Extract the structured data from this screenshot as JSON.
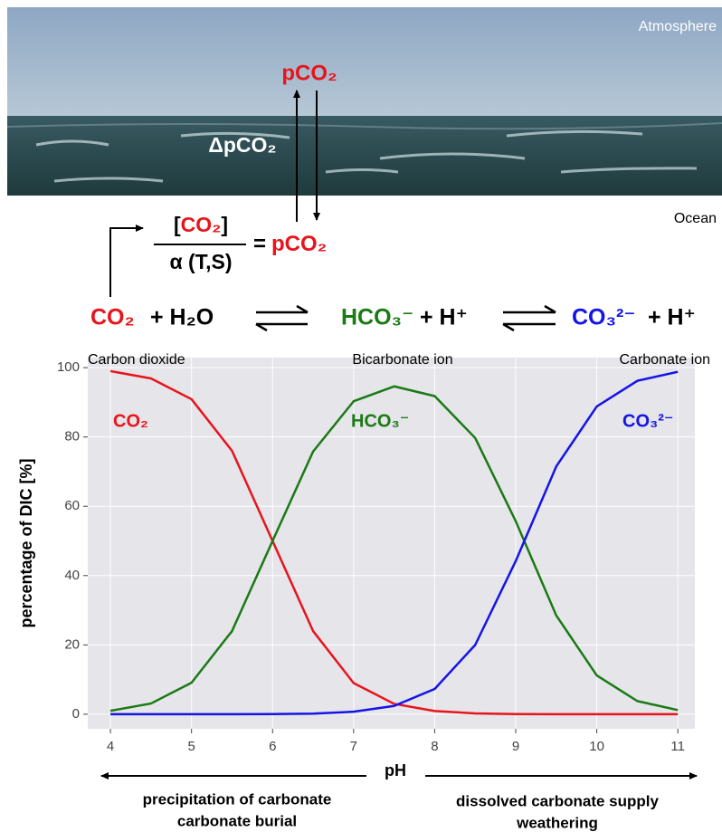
{
  "diagram": {
    "atmosphere": "Atmosphere",
    "ocean": "Ocean",
    "pco2_top": "pCO₂",
    "delta": "ΔpCO₂",
    "numerator": [
      "[",
      "CO₂",
      "]"
    ],
    "denominator": "α (T,S)",
    "equals": [
      "=",
      "pCO₂"
    ],
    "reaction": [
      "CO₂",
      "+ H₂O",
      "HCO₃⁻",
      "+ H⁺",
      "CO₃²⁻",
      "+ H⁺"
    ],
    "species_names": [
      "Carbon dioxide",
      "Bicarbonate ion",
      "Carbonate ion"
    ],
    "left_note": [
      "precipitation of carbonate",
      "carbonate burial"
    ],
    "right_note": [
      "dissolved carbonate supply",
      "weathering"
    ]
  },
  "chart_data": {
    "type": "line",
    "x_label": "pH",
    "y_label": "percentage of DIC [%]",
    "x": [
      4,
      4.5,
      5,
      5.5,
      6,
      6.5,
      7,
      7.5,
      8,
      8.5,
      9,
      9.5,
      10,
      10.5,
      11
    ],
    "series": [
      {
        "name": "CO₂",
        "color": "#e8141b",
        "values": [
          99.0,
          96.9,
          90.9,
          76.0,
          50.0,
          24.0,
          9.0,
          3.0,
          0.92,
          0.25,
          0.06,
          0.01,
          0,
          0,
          0
        ]
      },
      {
        "name": "HCO₃⁻",
        "color": "#1a7a14",
        "values": [
          0.99,
          3.1,
          9.1,
          24.0,
          50.0,
          75.8,
          90.3,
          94.6,
          91.8,
          79.7,
          55.7,
          28.5,
          11.2,
          3.8,
          1.2
        ]
      },
      {
        "name": "CO₃²⁻",
        "color": "#1414e8",
        "values": [
          0,
          0,
          0,
          0,
          0.04,
          0.19,
          0.72,
          2.4,
          7.3,
          20.0,
          44.2,
          71.5,
          88.8,
          96.2,
          98.8
        ]
      }
    ],
    "xlim": [
      3.72,
      11.21
    ],
    "ylim": [
      -4.2,
      102.9
    ],
    "xticks": [
      4,
      5,
      6,
      7,
      8,
      9,
      10,
      11
    ],
    "yticks": [
      0,
      20,
      40,
      60,
      80,
      100
    ],
    "grid": true
  }
}
